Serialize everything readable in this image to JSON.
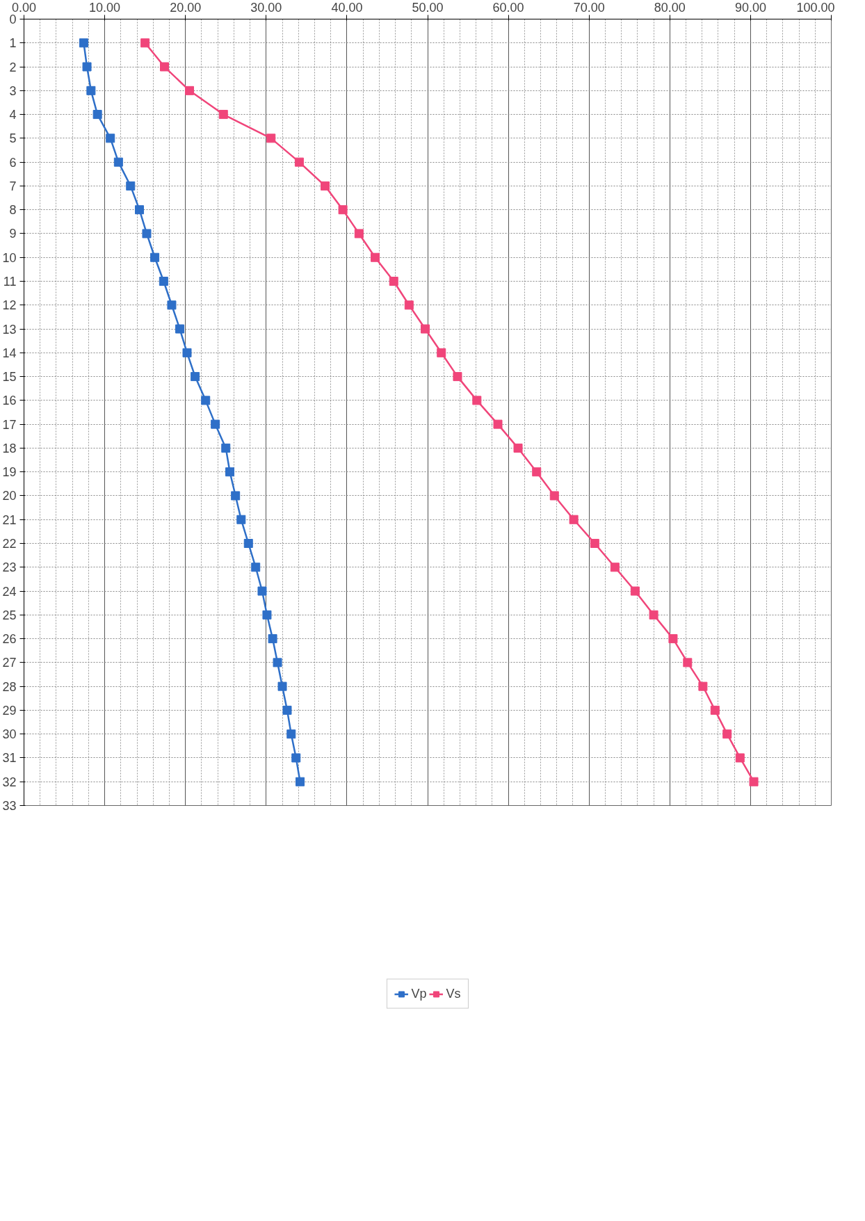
{
  "chart_data": {
    "type": "line",
    "orientation": "horizontal",
    "marker": "square",
    "line_style": "solid",
    "grid": true,
    "legend": "bottom",
    "x": [
      1,
      2,
      3,
      4,
      5,
      6,
      7,
      8,
      9,
      10,
      11,
      12,
      13,
      14,
      15,
      16,
      17,
      18,
      19,
      20,
      21,
      22,
      23,
      24,
      25,
      26,
      27,
      28,
      29,
      30,
      31,
      32
    ],
    "series": [
      {
        "name": "Vp",
        "color": "#2e6fc8",
        "values": [
          7.4,
          7.8,
          8.3,
          9.1,
          10.7,
          11.7,
          13.2,
          14.3,
          15.2,
          16.2,
          17.3,
          18.3,
          19.3,
          20.2,
          21.2,
          22.5,
          23.7,
          25.0,
          25.5,
          26.2,
          26.9,
          27.8,
          28.7,
          29.5,
          30.1,
          30.8,
          31.4,
          32.0,
          32.6,
          33.1,
          33.7,
          34.2
        ]
      },
      {
        "name": "Vs",
        "color": "#f0457a",
        "values": [
          15.0,
          17.4,
          20.5,
          24.7,
          30.6,
          34.1,
          37.3,
          39.5,
          41.5,
          43.5,
          45.8,
          47.7,
          49.7,
          51.7,
          53.7,
          56.1,
          58.7,
          61.2,
          63.5,
          65.7,
          68.1,
          70.7,
          73.2,
          75.7,
          78.0,
          80.4,
          82.2,
          84.1,
          85.6,
          87.1,
          88.7,
          90.4
        ]
      }
    ],
    "xlim": [
      0,
      100
    ],
    "xticks": [
      {
        "value": 0,
        "label": "0.00"
      },
      {
        "value": 10,
        "label": "10.00"
      },
      {
        "value": 20,
        "label": "20.00"
      },
      {
        "value": 30,
        "label": "30.00"
      },
      {
        "value": 40,
        "label": "40.00"
      },
      {
        "value": 50,
        "label": "50.00"
      },
      {
        "value": 60,
        "label": "60.00"
      },
      {
        "value": 70,
        "label": "70.00"
      },
      {
        "value": 80,
        "label": "80.00"
      },
      {
        "value": 90,
        "label": "90.00"
      },
      {
        "value": 100,
        "label": "100.00"
      }
    ],
    "ylim": [
      33,
      0
    ],
    "yticks": [
      0,
      1,
      2,
      3,
      4,
      5,
      6,
      7,
      8,
      9,
      10,
      11,
      12,
      13,
      14,
      15,
      16,
      17,
      18,
      19,
      20,
      21,
      22,
      23,
      24,
      25,
      26,
      27,
      28,
      29,
      30,
      31,
      32,
      33
    ]
  }
}
